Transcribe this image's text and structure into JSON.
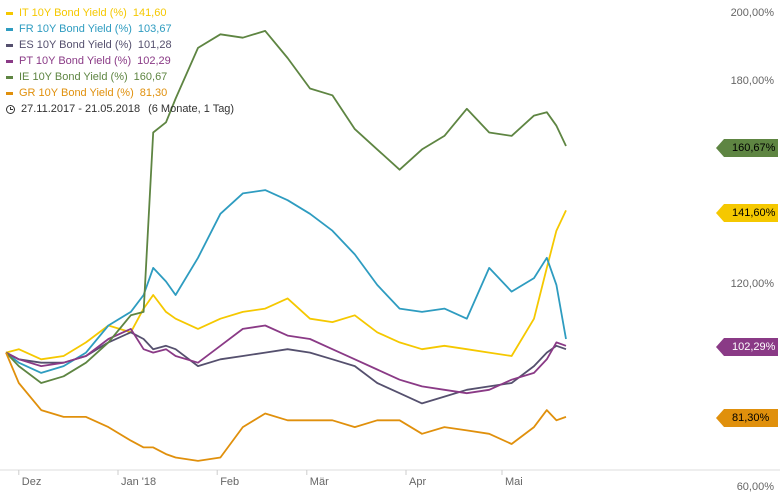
{
  "legend": {
    "items": [
      {
        "label": "IT 10Y Bond Yield (%)",
        "value": "141,60",
        "color": "#F5C800"
      },
      {
        "label": "FR 10Y Bond Yield (%)",
        "value": "103,67",
        "color": "#2E9CC0"
      },
      {
        "label": "ES 10Y Bond Yield (%)",
        "value": "101,28",
        "color": "#55506E"
      },
      {
        "label": "PT 10Y Bond Yield (%)",
        "value": "102,29",
        "color": "#8A3A86"
      },
      {
        "label": "IE 10Y Bond Yield (%)",
        "value": "160,67",
        "color": "#5E8542"
      },
      {
        "label": "GR 10Y Bond Yield (%)",
        "value": "81,30",
        "color": "#E0900C"
      }
    ],
    "period": "27.11.2017 - 21.05.2018",
    "duration": "(6 Monate, 1 Tag)"
  },
  "end_labels": [
    {
      "text": "160,67%",
      "color": "#5E8542",
      "text_color": "#000000"
    },
    {
      "text": "141,60%",
      "color": "#F5C800",
      "text_color": "#000000"
    },
    {
      "text": "102,29%",
      "color": "#8A3A86",
      "text_color": "#ffffff"
    },
    {
      "text": "81,30%",
      "color": "#E0900C",
      "text_color": "#000000"
    }
  ],
  "chart_data": {
    "type": "line",
    "title": "",
    "xlabel": "",
    "ylabel": "",
    "x_range": [
      "2017-11-27",
      "2018-05-21"
    ],
    "ylim": [
      60,
      200
    ],
    "yticks": [
      60,
      80,
      100,
      120,
      140,
      160,
      180,
      200
    ],
    "ytick_labels": [
      "60,00%",
      "",
      "",
      "120,00%",
      "",
      "",
      "180,00%",
      "200,00%"
    ],
    "xtick_labels": [
      "Dez",
      "Jan '18",
      "Feb",
      "Mär",
      "Apr",
      "Mai"
    ],
    "grid": false,
    "legend_position": "top-left",
    "series": [
      {
        "name": "IT 10Y Bond Yield (%)",
        "color": "#F5C800",
        "x": [
          "2017-11-27",
          "2017-12-01",
          "2017-12-08",
          "2017-12-15",
          "2017-12-22",
          "2017-12-29",
          "2018-01-05",
          "2018-01-09",
          "2018-01-12",
          "2018-01-16",
          "2018-01-19",
          "2018-01-26",
          "2018-02-02",
          "2018-02-09",
          "2018-02-16",
          "2018-02-23",
          "2018-03-02",
          "2018-03-09",
          "2018-03-16",
          "2018-03-23",
          "2018-03-30",
          "2018-04-06",
          "2018-04-13",
          "2018-04-20",
          "2018-04-27",
          "2018-05-04",
          "2018-05-11",
          "2018-05-15",
          "2018-05-18",
          "2018-05-21"
        ],
        "y": [
          100,
          101,
          98,
          99,
          103,
          108,
          106,
          113,
          117,
          112,
          110,
          107,
          110,
          112,
          113,
          116,
          110,
          109,
          111,
          106,
          103,
          101,
          102,
          101,
          100,
          99,
          110,
          125,
          136,
          142
        ]
      },
      {
        "name": "FR 10Y Bond Yield (%)",
        "color": "#2E9CC0",
        "x": [
          "2017-11-27",
          "2017-12-01",
          "2017-12-08",
          "2017-12-15",
          "2017-12-22",
          "2017-12-29",
          "2018-01-05",
          "2018-01-09",
          "2018-01-12",
          "2018-01-16",
          "2018-01-19",
          "2018-01-26",
          "2018-02-02",
          "2018-02-09",
          "2018-02-16",
          "2018-02-23",
          "2018-03-02",
          "2018-03-09",
          "2018-03-16",
          "2018-03-23",
          "2018-03-30",
          "2018-04-06",
          "2018-04-13",
          "2018-04-20",
          "2018-04-27",
          "2018-05-04",
          "2018-05-11",
          "2018-05-15",
          "2018-05-18",
          "2018-05-21"
        ],
        "y": [
          100,
          97,
          94,
          96,
          100,
          108,
          112,
          117,
          125,
          121,
          117,
          128,
          141,
          147,
          148,
          145,
          141,
          136,
          129,
          120,
          113,
          112,
          113,
          110,
          125,
          118,
          122,
          128,
          120,
          104
        ]
      },
      {
        "name": "ES 10Y Bond Yield (%)",
        "color": "#55506E",
        "x": [
          "2017-11-27",
          "2017-12-01",
          "2017-12-08",
          "2017-12-15",
          "2017-12-22",
          "2017-12-29",
          "2018-01-05",
          "2018-01-09",
          "2018-01-12",
          "2018-01-16",
          "2018-01-19",
          "2018-01-26",
          "2018-02-02",
          "2018-02-09",
          "2018-02-16",
          "2018-02-23",
          "2018-03-02",
          "2018-03-09",
          "2018-03-16",
          "2018-03-23",
          "2018-03-30",
          "2018-04-06",
          "2018-04-13",
          "2018-04-20",
          "2018-04-27",
          "2018-05-04",
          "2018-05-11",
          "2018-05-15",
          "2018-05-18",
          "2018-05-21"
        ],
        "y": [
          100,
          98,
          97,
          97,
          99,
          103,
          106,
          104,
          101,
          102,
          101,
          96,
          98,
          99,
          100,
          101,
          100,
          98,
          96,
          91,
          88,
          85,
          87,
          89,
          90,
          91,
          96,
          100,
          102,
          101
        ]
      },
      {
        "name": "PT 10Y Bond Yield (%)",
        "color": "#8A3A86",
        "x": [
          "2017-11-27",
          "2017-12-01",
          "2017-12-08",
          "2017-12-15",
          "2017-12-22",
          "2017-12-29",
          "2018-01-05",
          "2018-01-09",
          "2018-01-12",
          "2018-01-16",
          "2018-01-19",
          "2018-01-26",
          "2018-02-02",
          "2018-02-09",
          "2018-02-16",
          "2018-02-23",
          "2018-03-02",
          "2018-03-09",
          "2018-03-16",
          "2018-03-23",
          "2018-03-30",
          "2018-04-06",
          "2018-04-13",
          "2018-04-20",
          "2018-04-27",
          "2018-05-04",
          "2018-05-11",
          "2018-05-15",
          "2018-05-18",
          "2018-05-21"
        ],
        "y": [
          100,
          98,
          96,
          97,
          99,
          104,
          107,
          101,
          100,
          101,
          99,
          97,
          102,
          107,
          108,
          105,
          104,
          101,
          98,
          95,
          92,
          90,
          89,
          88,
          89,
          92,
          94,
          98,
          103,
          102
        ]
      },
      {
        "name": "IE 10Y Bond Yield (%)",
        "color": "#5E8542",
        "x": [
          "2017-11-27",
          "2017-12-01",
          "2017-12-08",
          "2017-12-15",
          "2017-12-22",
          "2017-12-29",
          "2018-01-05",
          "2018-01-09",
          "2018-01-12",
          "2018-01-16",
          "2018-01-19",
          "2018-01-26",
          "2018-02-02",
          "2018-02-09",
          "2018-02-16",
          "2018-02-23",
          "2018-03-02",
          "2018-03-09",
          "2018-03-16",
          "2018-03-23",
          "2018-03-30",
          "2018-04-06",
          "2018-04-13",
          "2018-04-20",
          "2018-04-27",
          "2018-05-04",
          "2018-05-11",
          "2018-05-15",
          "2018-05-18",
          "2018-05-21"
        ],
        "y": [
          100,
          96,
          91,
          93,
          97,
          103,
          111,
          112,
          165,
          168,
          175,
          190,
          194,
          193,
          195,
          187,
          178,
          176,
          166,
          160,
          154,
          160,
          164,
          172,
          165,
          164,
          170,
          171,
          167,
          161
        ]
      },
      {
        "name": "GR 10Y Bond Yield (%)",
        "color": "#E0900C",
        "x": [
          "2017-11-27",
          "2017-12-01",
          "2017-12-08",
          "2017-12-15",
          "2017-12-22",
          "2017-12-29",
          "2018-01-05",
          "2018-01-09",
          "2018-01-12",
          "2018-01-16",
          "2018-01-19",
          "2018-01-26",
          "2018-02-02",
          "2018-02-09",
          "2018-02-16",
          "2018-02-23",
          "2018-03-02",
          "2018-03-09",
          "2018-03-16",
          "2018-03-23",
          "2018-03-30",
          "2018-04-06",
          "2018-04-13",
          "2018-04-20",
          "2018-04-27",
          "2018-05-04",
          "2018-05-11",
          "2018-05-15",
          "2018-05-18",
          "2018-05-21"
        ],
        "y": [
          100,
          91,
          83,
          81,
          81,
          78,
          74,
          72,
          72,
          70,
          69,
          68,
          69,
          78,
          82,
          80,
          80,
          80,
          78,
          80,
          80,
          76,
          78,
          77,
          76,
          73,
          78,
          83,
          80,
          81
        ]
      }
    ]
  }
}
